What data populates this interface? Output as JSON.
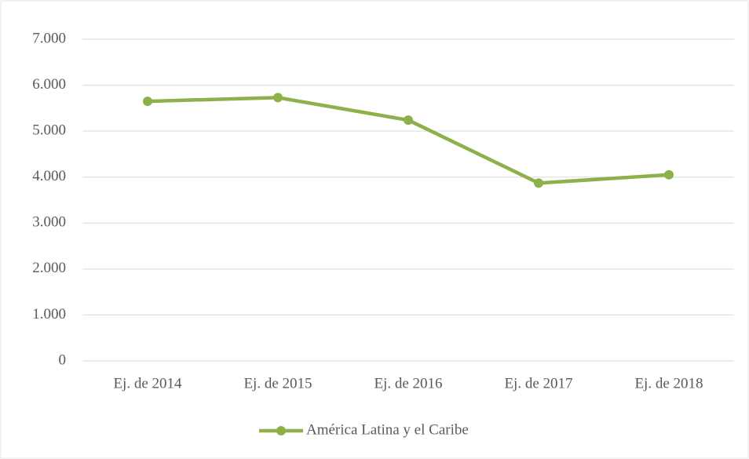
{
  "chart_data": {
    "type": "line",
    "categories": [
      "Ej. de 2014",
      "Ej. de 2015",
      "Ej. de 2016",
      "Ej. de 2017",
      "Ej. de 2018"
    ],
    "series": [
      {
        "name": "América Latina y el Caribe",
        "color": "#8db04a",
        "values": [
          5650,
          5730,
          5240,
          3870,
          4050
        ]
      }
    ],
    "ylim": [
      0,
      7000
    ],
    "yticks": [
      0,
      {
        "value": 1000,
        "label": "1.000"
      },
      {
        "value": 2000,
        "label": "2.000"
      },
      {
        "value": 3000,
        "label": "3.000"
      },
      {
        "value": 4000,
        "label": "4.000"
      },
      {
        "value": 5000,
        "label": "5.000"
      },
      {
        "value": 6000,
        "label": "6.000"
      },
      {
        "value": 7000,
        "label": "7.000"
      }
    ],
    "grid": true,
    "legend": "bottom"
  }
}
